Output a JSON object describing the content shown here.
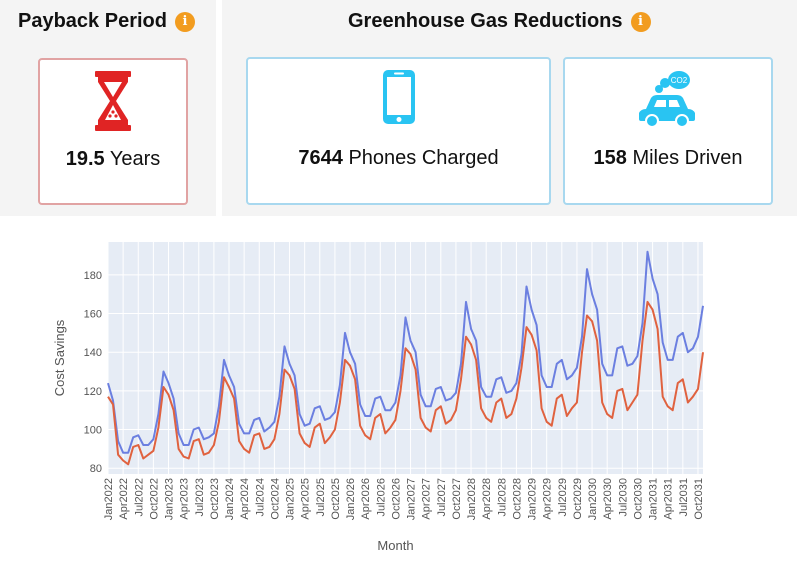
{
  "payback": {
    "title": "Payback Period",
    "value": "19.5",
    "unit": "Years",
    "icon": "hourglass-icon",
    "info_icon": "i"
  },
  "ghg": {
    "title": "Greenhouse Gas Reductions",
    "info_icon": "i",
    "phones": {
      "value": "7644",
      "unit": "Phones Charged",
      "icon": "phone-icon"
    },
    "miles": {
      "value": "158",
      "unit": "Miles Driven",
      "icon": "car-co2-icon",
      "icon_text": "CO2"
    }
  },
  "colors": {
    "accent_orange": "#f29c1f",
    "icon_red": "#e02424",
    "icon_blue": "#29c4f2",
    "series_blue": "#6b7fe0",
    "series_red": "#e0623f",
    "plot_bg": "#e6ecf5"
  },
  "chart_data": {
    "type": "line",
    "xlabel": "Month",
    "ylabel": "Cost Savings",
    "ylim": [
      77,
      197
    ],
    "yticks": [
      80,
      100,
      120,
      140,
      160,
      180
    ],
    "x_start": "Jan2022",
    "xticks": [
      "Jan2022",
      "Apr2022",
      "Jul2022",
      "Oct2022",
      "Jan2023",
      "Apr2023",
      "Jul2023",
      "Oct2023",
      "Jan2024",
      "Apr2024",
      "Jul2024",
      "Oct2024",
      "Jan2025",
      "Apr2025",
      "Jul2025",
      "Oct2025",
      "Jan2026",
      "Apr2026",
      "Jul2026",
      "Oct2026",
      "Jan2027",
      "Apr2027",
      "Jul2027",
      "Oct2027",
      "Jan2028",
      "Apr2028",
      "Jul2028",
      "Oct2028",
      "Jan2029",
      "Apr2029",
      "Jul2029",
      "Oct2029",
      "Jan2030",
      "Apr2030",
      "Jul2030",
      "Oct2030",
      "Jan2031",
      "Apr2031",
      "Jul2031",
      "Oct2031"
    ],
    "grid": true,
    "series": [
      {
        "values": [
          124,
          115,
          94,
          88,
          88,
          96,
          97,
          92,
          92,
          95,
          108,
          130,
          124,
          116,
          98,
          92,
          92,
          100,
          101,
          95,
          96,
          98,
          112,
          136,
          128,
          122,
          103,
          98,
          98,
          105,
          106,
          99,
          101,
          104,
          117,
          143,
          134,
          128,
          108,
          102,
          103,
          111,
          112,
          105,
          106,
          109,
          123,
          150,
          140,
          134,
          113,
          107,
          107,
          116,
          117,
          110,
          110,
          114,
          128,
          158,
          146,
          140,
          118,
          112,
          112,
          121,
          122,
          115,
          116,
          119,
          134,
          166,
          152,
          146,
          122,
          117,
          117,
          126,
          127,
          119,
          120,
          124,
          139,
          174,
          162,
          154,
          128,
          122,
          122,
          134,
          136,
          126,
          128,
          132,
          148,
          183,
          170,
          162,
          134,
          128,
          128,
          142,
          143,
          133,
          134,
          138,
          155,
          192,
          178,
          170,
          145,
          136,
          136,
          148,
          150,
          140,
          142,
          148,
          164
        ]
      },
      {
        "values": [
          117,
          113,
          87,
          84,
          82,
          91,
          92,
          85,
          87,
          89,
          101,
          122,
          118,
          110,
          90,
          86,
          85,
          94,
          95,
          87,
          88,
          92,
          104,
          127,
          122,
          116,
          94,
          90,
          88,
          97,
          98,
          90,
          91,
          95,
          108,
          131,
          128,
          121,
          98,
          93,
          91,
          101,
          103,
          93,
          96,
          100,
          114,
          136,
          133,
          126,
          102,
          97,
          95,
          106,
          108,
          98,
          101,
          105,
          120,
          142,
          139,
          131,
          106,
          101,
          99,
          110,
          112,
          103,
          105,
          110,
          126,
          148,
          144,
          136,
          111,
          106,
          104,
          114,
          116,
          106,
          108,
          116,
          132,
          153,
          149,
          141,
          111,
          104,
          102,
          116,
          118,
          107,
          111,
          114,
          140,
          159,
          156,
          146,
          114,
          108,
          106,
          120,
          121,
          110,
          114,
          118,
          146,
          166,
          162,
          152,
          117,
          112,
          110,
          124,
          126,
          114,
          117,
          121,
          140
        ]
      }
    ]
  }
}
